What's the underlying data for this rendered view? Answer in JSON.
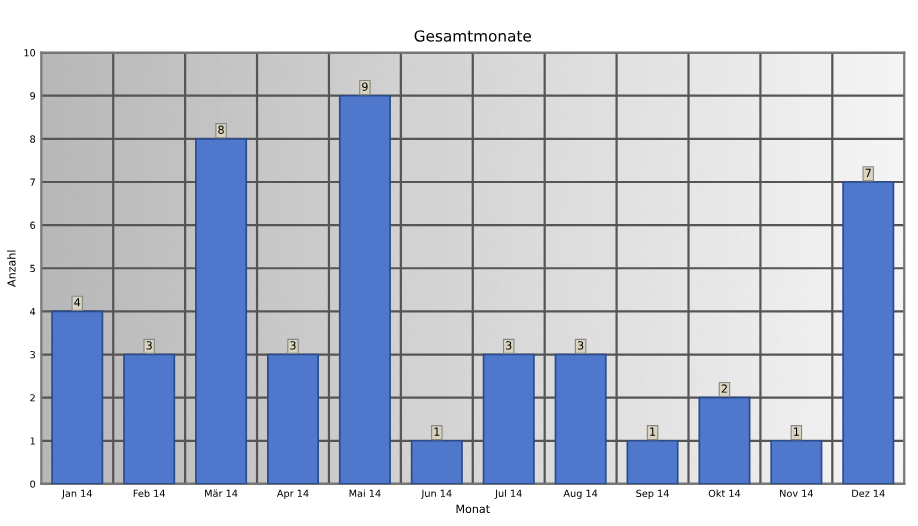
{
  "chart_data": {
    "type": "bar",
    "title": "Gesamtmonate",
    "xlabel": "Monat",
    "ylabel": "Anzahl",
    "categories": [
      "Jan 14",
      "Feb 14",
      "Mär 14",
      "Apr 14",
      "Mai 14",
      "Jun 14",
      "Jul 14",
      "Aug 14",
      "Sep 14",
      "Okt 14",
      "Nov 14",
      "Dez 14"
    ],
    "values": [
      4,
      3,
      8,
      3,
      9,
      1,
      3,
      3,
      1,
      2,
      1,
      7
    ],
    "color": "#4f78cc",
    "ylim": [
      0,
      10
    ],
    "yticks": [
      0,
      1,
      2,
      3,
      4,
      5,
      6,
      7,
      8,
      9,
      10
    ],
    "grid": true,
    "data_labels": true
  }
}
